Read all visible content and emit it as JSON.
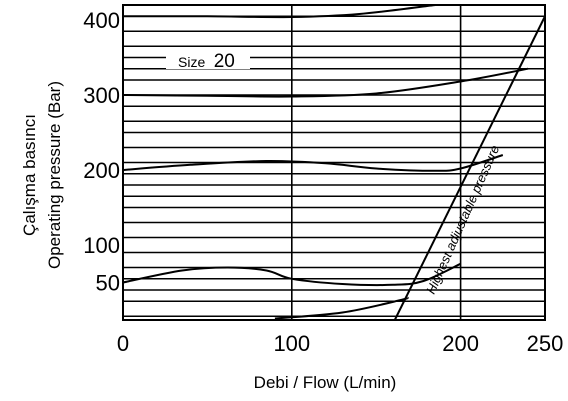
{
  "chart_data": {
    "type": "line",
    "title": "",
    "xlabel": "Debi / Flow (L/min)",
    "ylabel_lines": [
      "Çalışma basıncı",
      "Operating pressure (Bar)"
    ],
    "x_ticks": [
      {
        "value": 0,
        "label": "0"
      },
      {
        "value": 100,
        "label": "100"
      },
      {
        "value": 200,
        "label": "200"
      },
      {
        "value": 250,
        "label": "250"
      }
    ],
    "y_ticks": [
      {
        "value": 50,
        "label": "50"
      },
      {
        "value": 100,
        "label": "100"
      },
      {
        "value": 200,
        "label": "200"
      },
      {
        "value": 300,
        "label": "300"
      },
      {
        "value": 400,
        "label": "400"
      }
    ],
    "xlim": [
      0,
      250
    ],
    "ylim": [
      0,
      420
    ],
    "grid_y_values": [
      5,
      25,
      40,
      55,
      70,
      90,
      110,
      130,
      150,
      165,
      180,
      195,
      210,
      230,
      250,
      265,
      285,
      300,
      320,
      335,
      350,
      365,
      385,
      405
    ],
    "grid_x_values": [
      100,
      200
    ],
    "annotations": {
      "size_label_prefix": "Size",
      "size_label_value": "20",
      "limit_label": "Highest adjustable pressure"
    },
    "series": [
      {
        "points": [
          [
            0,
            405
          ],
          [
            50,
            405
          ],
          [
            100,
            404
          ],
          [
            140,
            408
          ],
          [
            185,
            420
          ]
        ]
      },
      {
        "points": [
          [
            0,
            300
          ],
          [
            50,
            299
          ],
          [
            100,
            298
          ],
          [
            150,
            302
          ],
          [
            200,
            318
          ],
          [
            240,
            335
          ]
        ]
      },
      {
        "points": [
          [
            0,
            200
          ],
          [
            40,
            207
          ],
          [
            85,
            212
          ],
          [
            120,
            209
          ],
          [
            150,
            202
          ],
          [
            185,
            199
          ],
          [
            200,
            202
          ],
          [
            225,
            220
          ]
        ]
      },
      {
        "points": [
          [
            0,
            50
          ],
          [
            35,
            66
          ],
          [
            62,
            70
          ],
          [
            85,
            66
          ],
          [
            100,
            55
          ],
          [
            130,
            48
          ],
          [
            160,
            47
          ],
          [
            178,
            52
          ],
          [
            200,
            75
          ]
        ]
      },
      {
        "points": [
          [
            90,
            2
          ],
          [
            130,
            10
          ],
          [
            165,
            27
          ],
          [
            168,
            30
          ]
        ]
      }
    ],
    "limit_line": {
      "points": [
        [
          161,
          0
        ],
        [
          250,
          405
        ]
      ]
    }
  }
}
